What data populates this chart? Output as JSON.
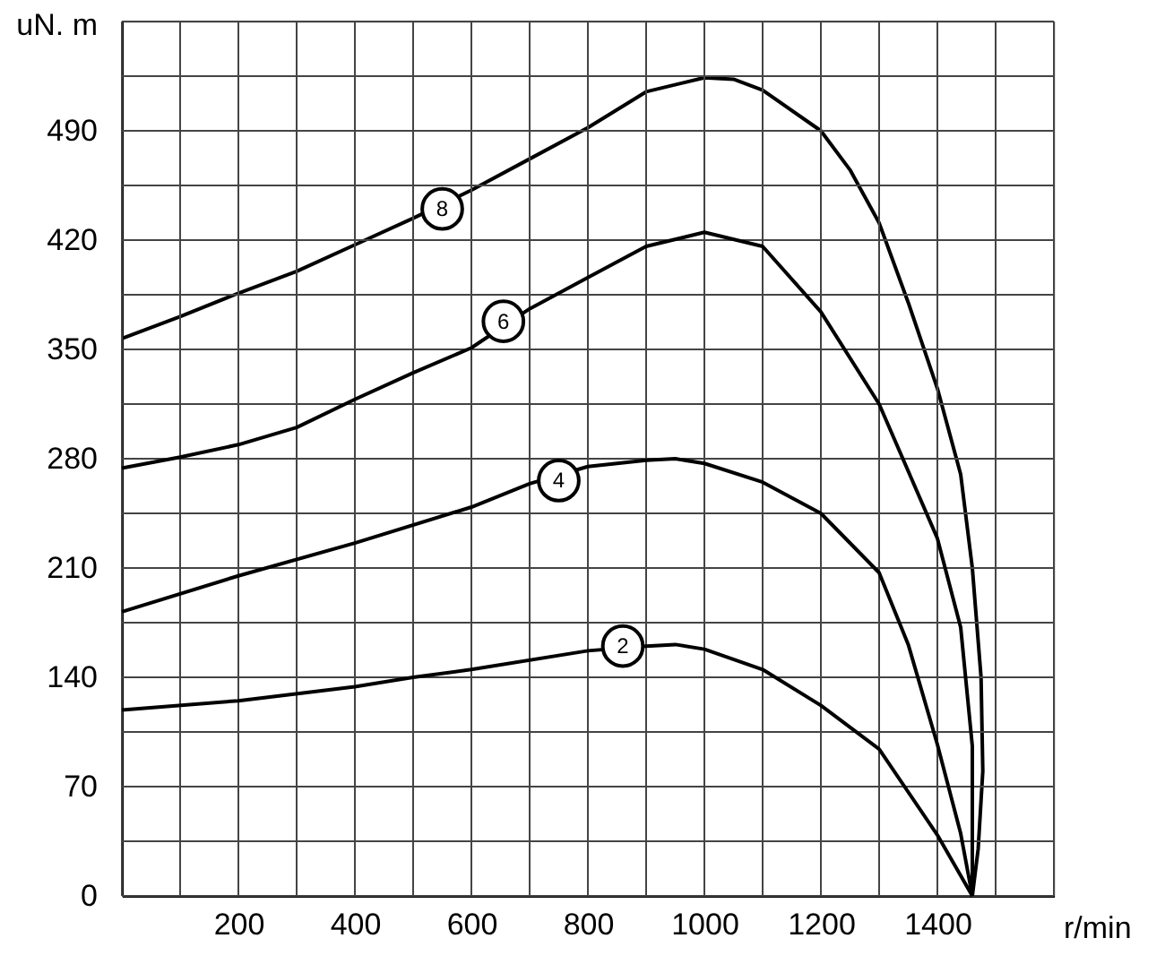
{
  "chart_data": {
    "type": "line",
    "xlabel": "r/min",
    "ylabel": "uN. m",
    "xlim": [
      0,
      1600
    ],
    "ylim": [
      0,
      560
    ],
    "xticks": [
      {
        "value": 0,
        "label": null
      },
      {
        "value": 100,
        "label": null
      },
      200,
      {
        "value": 300,
        "label": null
      },
      400,
      {
        "value": 500,
        "label": null
      },
      600,
      {
        "value": 700,
        "label": null
      },
      800,
      {
        "value": 900,
        "label": null
      },
      1000,
      {
        "value": 1100,
        "label": null
      },
      1200,
      {
        "value": 1300,
        "label": null
      },
      1400,
      {
        "value": 1500,
        "label": null
      },
      {
        "value": 1600,
        "label": null
      }
    ],
    "yticks": [
      0,
      {
        "value": 35,
        "label": null
      },
      70,
      {
        "value": 105,
        "label": null
      },
      140,
      {
        "value": 175,
        "label": null
      },
      210,
      {
        "value": 245,
        "label": null
      },
      280,
      {
        "value": 315,
        "label": null
      },
      350,
      {
        "value": 385,
        "label": null
      },
      420,
      {
        "value": 455,
        "label": null
      },
      490,
      {
        "value": 525,
        "label": null
      },
      {
        "value": 560,
        "label": null
      }
    ],
    "grid": true,
    "marker": "none",
    "line_style": "solid",
    "series": [
      {
        "color": "#000000",
        "x": [
          0,
          100,
          200,
          300,
          400,
          500,
          600,
          700,
          800,
          900,
          1000,
          1050,
          1100,
          1200,
          1250,
          1300,
          1350,
          1400,
          1440,
          1460,
          1475,
          1478,
          1470,
          1460
        ],
        "values": [
          357,
          371,
          386,
          400,
          417,
          434,
          452,
          472,
          492,
          515,
          524,
          523,
          516,
          490,
          465,
          431,
          380,
          325,
          270,
          210,
          140,
          80,
          30,
          0
        ]
      },
      {
        "color": "#000000",
        "x": [
          0,
          100,
          200,
          300,
          400,
          500,
          600,
          700,
          800,
          900,
          1000,
          1100,
          1200,
          1300,
          1400,
          1440,
          1460,
          1460
        ],
        "values": [
          274,
          281,
          289,
          300,
          318,
          335,
          351,
          376,
          396,
          416,
          425,
          416,
          374,
          315,
          229,
          172,
          96,
          0
        ]
      },
      {
        "color": "#000000",
        "x": [
          0,
          200,
          400,
          600,
          700,
          800,
          900,
          950,
          1000,
          1100,
          1200,
          1300,
          1350,
          1400,
          1440,
          1460
        ],
        "values": [
          182,
          205,
          226,
          249,
          264,
          275,
          279,
          280,
          277,
          265,
          245,
          207,
          161,
          97,
          40,
          0
        ]
      },
      {
        "color": "#000000",
        "x": [
          0,
          200,
          400,
          500,
          600,
          800,
          900,
          950,
          1000,
          1100,
          1200,
          1300,
          1400,
          1460
        ],
        "values": [
          119,
          125,
          134,
          140,
          145,
          157,
          160,
          161,
          158,
          145,
          122,
          94,
          39,
          0
        ]
      }
    ],
    "annotations": [
      {
        "text": "8",
        "x": 550,
        "y": 440
      },
      {
        "text": "6",
        "x": 655,
        "y": 368
      },
      {
        "text": "4",
        "x": 750,
        "y": 266
      },
      {
        "text": "2",
        "x": 860,
        "y": 160
      }
    ]
  }
}
